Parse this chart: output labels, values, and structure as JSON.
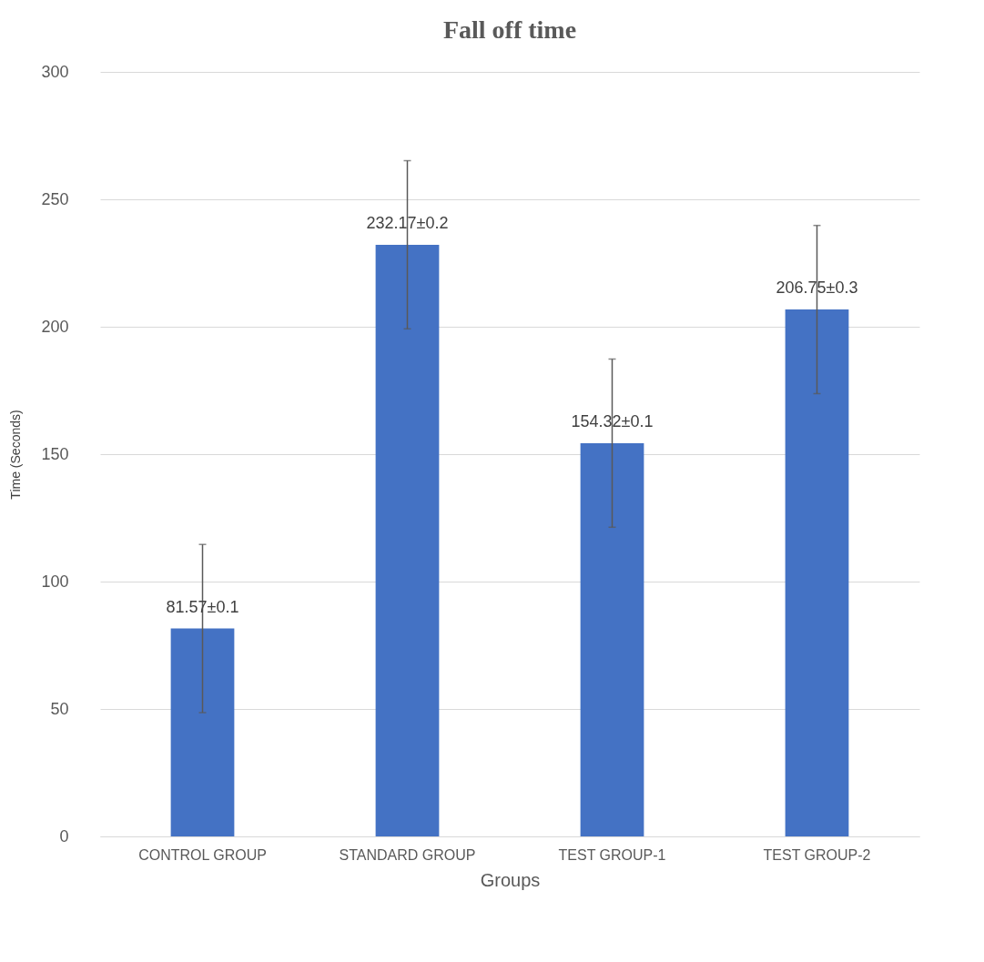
{
  "chart_data": {
    "type": "bar",
    "title": "Fall off time",
    "xlabel": "Groups",
    "ylabel": "Time (Seconds)",
    "categories": [
      "CONTROL GROUP",
      "STANDARD GROUP",
      "TEST GROUP-1",
      "TEST GROUP-2"
    ],
    "values": [
      81.57,
      232.17,
      154.32,
      206.75
    ],
    "errors": [
      33,
      33,
      33,
      33
    ],
    "value_labels": [
      "81.57±0.1",
      "232.17±0.2",
      "154.32±0.1",
      "206.75±0.3"
    ],
    "color": "#4472c4",
    "ylim": [
      0,
      300
    ],
    "yticks": [
      0,
      50,
      100,
      150,
      200,
      250,
      300
    ],
    "grid": "y"
  }
}
